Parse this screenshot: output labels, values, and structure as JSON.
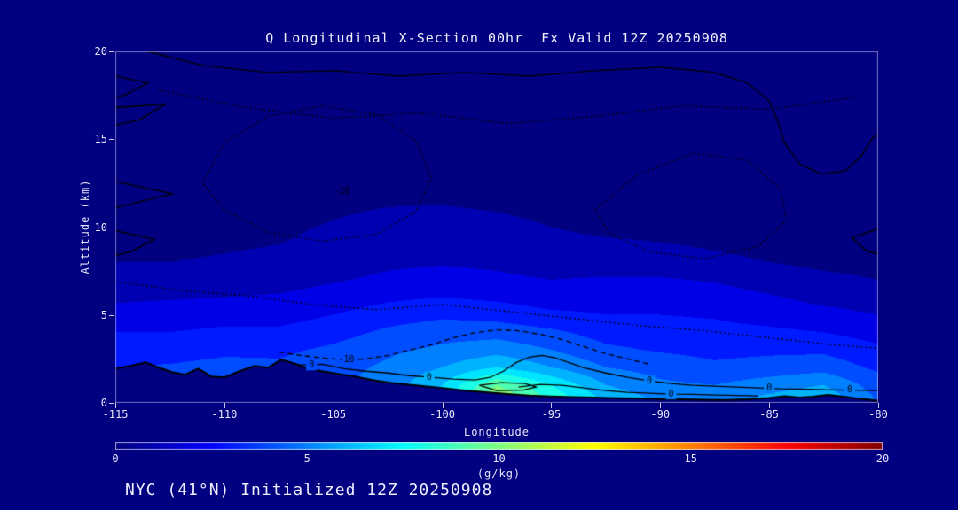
{
  "page": {
    "background": "#000080",
    "text_color": "#e6e6fa"
  },
  "header": {
    "title": "Q Longitudinal X-Section 00hr  Fx Valid 12Z 20250908"
  },
  "footer": {
    "text": "NYC (41°N) Initialized 12Z 20250908"
  },
  "axes": {
    "x": {
      "label": "Longitude",
      "range": [
        -115,
        -80
      ],
      "ticks": [
        -115,
        -110,
        -105,
        -100,
        -95,
        -90,
        -85,
        -80
      ]
    },
    "y": {
      "label": "Altitude (km)",
      "range": [
        0,
        20
      ],
      "ticks": [
        0,
        5,
        10,
        15,
        20
      ]
    }
  },
  "colorbar": {
    "label": "(g/kg)",
    "range": [
      0,
      20
    ],
    "ticks": [
      0,
      5,
      10,
      15,
      20
    ],
    "colormap": "jet"
  },
  "chart_data": {
    "type": "heatmap",
    "title": "Q Longitudinal X-Section 00hr  Fx Valid 12Z 20250908",
    "xlabel": "Longitude",
    "ylabel": "Altitude (km)",
    "units": "g/kg",
    "x_range": [
      -115,
      -80
    ],
    "y_range": [
      0,
      20
    ],
    "value_range": [
      0,
      20
    ],
    "colormap": "jet",
    "contour_interval": 1,
    "x": [
      -115,
      -112.5,
      -110,
      -107.5,
      -105,
      -102.5,
      -100,
      -97.5,
      -95,
      -92.5,
      -90,
      -87.5,
      -85,
      -82.5,
      -80
    ],
    "y": [
      0,
      1,
      2,
      3,
      4,
      5,
      6,
      7,
      8,
      10,
      12,
      16,
      20
    ],
    "values": [
      [
        4.0,
        4.2,
        4.5,
        4.5,
        5.0,
        6.0,
        7.5,
        11.5,
        9.0,
        7.0,
        6.0,
        5.5,
        6.5,
        7.0,
        5.0
      ],
      [
        4.0,
        4.2,
        4.4,
        4.4,
        4.8,
        5.5,
        7.0,
        10.0,
        8.0,
        6.0,
        5.2,
        5.0,
        5.5,
        6.0,
        4.5
      ],
      [
        4.0,
        4.1,
        4.3,
        4.2,
        4.6,
        5.2,
        6.0,
        7.0,
        6.0,
        5.0,
        4.6,
        4.2,
        4.4,
        4.6,
        3.8
      ],
      [
        3.5,
        3.6,
        3.8,
        3.8,
        4.2,
        4.8,
        5.2,
        5.6,
        5.0,
        4.2,
        3.9,
        3.7,
        3.8,
        3.8,
        3.2
      ],
      [
        3.0,
        3.0,
        3.2,
        3.2,
        3.6,
        4.2,
        4.6,
        4.6,
        4.2,
        3.6,
        3.4,
        3.3,
        3.2,
        3.0,
        2.6
      ],
      [
        2.4,
        2.5,
        2.6,
        2.6,
        3.0,
        3.5,
        3.8,
        3.6,
        3.2,
        3.0,
        3.0,
        2.9,
        2.6,
        2.3,
        2.0
      ],
      [
        1.8,
        1.9,
        2.0,
        2.1,
        2.4,
        2.8,
        3.0,
        2.8,
        2.5,
        2.6,
        2.6,
        2.5,
        2.1,
        1.7,
        1.5
      ],
      [
        1.3,
        1.4,
        1.5,
        1.6,
        1.9,
        2.2,
        2.4,
        2.2,
        2.0,
        2.1,
        2.1,
        1.9,
        1.5,
        1.2,
        1.0
      ],
      [
        1.0,
        1.0,
        1.1,
        1.2,
        1.5,
        1.8,
        1.9,
        1.8,
        1.5,
        1.5,
        1.4,
        1.2,
        1.0,
        0.8,
        0.7
      ],
      [
        0.6,
        0.6,
        0.7,
        0.8,
        1.1,
        1.4,
        1.5,
        1.3,
        1.0,
        0.8,
        0.7,
        0.6,
        0.5,
        0.4,
        0.4
      ],
      [
        0.3,
        0.3,
        0.4,
        0.4,
        0.6,
        0.7,
        0.7,
        0.6,
        0.5,
        0.4,
        0.3,
        0.3,
        0.3,
        0.2,
        0.2
      ],
      [
        0.1,
        0.1,
        0.1,
        0.2,
        0.2,
        0.3,
        0.3,
        0.2,
        0.2,
        0.1,
        0.1,
        0.1,
        0.1,
        0.1,
        0.1
      ],
      [
        0.05,
        0.05,
        0.05,
        0.05,
        0.05,
        0.05,
        0.05,
        0.05,
        0.05,
        0.05,
        0.05,
        0.05,
        0.05,
        0.05,
        0.05
      ]
    ],
    "terrain": {
      "lon": [
        -115,
        -114.3,
        -113.6,
        -113,
        -112.4,
        -111.8,
        -111.2,
        -110.6,
        -110,
        -109.3,
        -108.6,
        -108,
        -107.4,
        -106.8,
        -106.2,
        -105.5,
        -104.8,
        -104,
        -103.2,
        -102.4,
        -101.6,
        -100.8,
        -100,
        -99,
        -98,
        -97,
        -96,
        -95,
        -94,
        -93,
        -92,
        -91,
        -90,
        -89,
        -88,
        -87,
        -86,
        -85,
        -84.3,
        -83.6,
        -83,
        -82.3,
        -81.6,
        -81,
        -80.4,
        -80
      ],
      "km": [
        1.95,
        2.1,
        2.3,
        2.0,
        1.75,
        1.6,
        1.95,
        1.5,
        1.45,
        1.8,
        2.1,
        2.0,
        2.45,
        2.25,
        1.95,
        1.8,
        1.65,
        1.5,
        1.3,
        1.15,
        1.05,
        0.95,
        0.85,
        0.7,
        0.6,
        0.5,
        0.42,
        0.37,
        0.33,
        0.3,
        0.27,
        0.25,
        0.22,
        0.2,
        0.18,
        0.17,
        0.2,
        0.28,
        0.38,
        0.3,
        0.35,
        0.45,
        0.35,
        0.25,
        0.18,
        0.12
      ]
    },
    "overlay_contours": [
      {
        "name": "zero-main",
        "style": "solid",
        "pts": [
          [
            -107.5,
            2.5
          ],
          [
            -106.5,
            2.15
          ],
          [
            -105.5,
            2.2
          ],
          [
            -104.5,
            1.95
          ],
          [
            -103.5,
            1.8
          ],
          [
            -102.5,
            1.7
          ],
          [
            -101.5,
            1.55
          ],
          [
            -100.5,
            1.45
          ],
          [
            -99.5,
            1.35
          ],
          [
            -98.5,
            1.3
          ],
          [
            -97.8,
            1.45
          ],
          [
            -97.2,
            1.8
          ],
          [
            -96.6,
            2.3
          ],
          [
            -96,
            2.6
          ],
          [
            -95.4,
            2.7
          ],
          [
            -94.8,
            2.55
          ],
          [
            -94.2,
            2.3
          ],
          [
            -93.5,
            2
          ],
          [
            -92.5,
            1.7
          ],
          [
            -91.5,
            1.45
          ],
          [
            -90.5,
            1.25
          ],
          [
            -89.5,
            1.1
          ],
          [
            -88.5,
            1
          ],
          [
            -87.5,
            0.95
          ],
          [
            -86.5,
            0.9
          ],
          [
            -85.5,
            0.85
          ],
          [
            -84.5,
            0.8
          ],
          [
            -83.5,
            0.78
          ],
          [
            -82.5,
            0.75
          ],
          [
            -81.5,
            0.72
          ],
          [
            -80,
            0.7
          ]
        ],
        "labels": [
          {
            "text": "0",
            "lon": -106,
            "km": 2.15
          },
          {
            "text": "0",
            "lon": -100.6,
            "km": 1.45
          },
          {
            "text": "0",
            "lon": -90.5,
            "km": 1.25
          },
          {
            "text": "0",
            "lon": -85,
            "km": 0.82
          },
          {
            "text": "0",
            "lon": -81.3,
            "km": 0.72
          }
        ]
      },
      {
        "name": "zero-low-east",
        "style": "solid",
        "pts": [
          [
            -96.5,
            0.9
          ],
          [
            -95.5,
            1.05
          ],
          [
            -94.5,
            1
          ],
          [
            -93.5,
            0.85
          ],
          [
            -92.5,
            0.7
          ],
          [
            -91.5,
            0.6
          ],
          [
            -90.5,
            0.55
          ],
          [
            -89.5,
            0.5
          ],
          [
            -88.5,
            0.48
          ],
          [
            -87.5,
            0.45
          ],
          [
            -86.5,
            0.42
          ],
          [
            -85.5,
            0.4
          ]
        ],
        "labels": [
          {
            "text": "0",
            "lon": -89.5,
            "km": 0.5
          }
        ]
      },
      {
        "name": "blob-ring",
        "style": "solid",
        "pts": [
          [
            -98.3,
            1
          ],
          [
            -97.3,
            1.15
          ],
          [
            -96.2,
            1.1
          ],
          [
            -95.7,
            0.9
          ],
          [
            -96.3,
            0.72
          ],
          [
            -97.5,
            0.7
          ],
          [
            -98.3,
            1
          ]
        ],
        "labels": []
      },
      {
        "name": "minus10-low",
        "style": "dashed",
        "pts": [
          [
            -107.5,
            2.9
          ],
          [
            -106.5,
            2.7
          ],
          [
            -105.5,
            2.55
          ],
          [
            -104.5,
            2.45
          ],
          [
            -103.5,
            2.5
          ],
          [
            -102.5,
            2.7
          ],
          [
            -101.5,
            3
          ],
          [
            -100.5,
            3.3
          ],
          [
            -99.5,
            3.7
          ],
          [
            -98.5,
            4
          ],
          [
            -97.5,
            4.15
          ],
          [
            -96.5,
            4.1
          ],
          [
            -95.5,
            3.9
          ],
          [
            -94.5,
            3.6
          ],
          [
            -93.5,
            3.2
          ],
          [
            -92.5,
            2.8
          ],
          [
            -91.5,
            2.5
          ],
          [
            -90.5,
            2.2
          ]
        ],
        "labels": [
          {
            "text": "-10",
            "lon": -104.4,
            "km": 2.45
          }
        ]
      },
      {
        "name": "mid-dotted",
        "style": "dotted",
        "pts": [
          [
            -115,
            6.9
          ],
          [
            -112,
            6.4
          ],
          [
            -109,
            6.1
          ],
          [
            -106,
            5.6
          ],
          [
            -103,
            5.3
          ],
          [
            -100,
            5.6
          ],
          [
            -97,
            5.2
          ],
          [
            -94,
            4.8
          ],
          [
            -91,
            4.4
          ],
          [
            -88,
            4.1
          ],
          [
            -85,
            3.7
          ],
          [
            -82,
            3.3
          ],
          [
            -80,
            3.1
          ]
        ],
        "labels": []
      },
      {
        "name": "upper-loop-west",
        "style": "dotted",
        "pts": [
          [
            -111,
            12.5
          ],
          [
            -110,
            14.8
          ],
          [
            -108,
            16.3
          ],
          [
            -105.5,
            16.9
          ],
          [
            -103,
            16.4
          ],
          [
            -101.2,
            14.9
          ],
          [
            -100.5,
            12.8
          ],
          [
            -101.2,
            10.9
          ],
          [
            -103,
            9.6
          ],
          [
            -105.5,
            9.2
          ],
          [
            -108,
            9.7
          ],
          [
            -110,
            11
          ],
          [
            -111,
            12.5
          ]
        ],
        "labels": [
          {
            "text": "-10",
            "lon": -104.6,
            "km": 12
          }
        ]
      },
      {
        "name": "upper-loop-east",
        "style": "dotted",
        "pts": [
          [
            -93,
            11
          ],
          [
            -91,
            13
          ],
          [
            -88.5,
            14.2
          ],
          [
            -86,
            13.8
          ],
          [
            -84.5,
            12.2
          ],
          [
            -84.2,
            10.4
          ],
          [
            -85.5,
            8.9
          ],
          [
            -88,
            8.2
          ],
          [
            -90.5,
            8.6
          ],
          [
            -92.3,
            9.6
          ],
          [
            -93,
            11
          ]
        ],
        "labels": []
      },
      {
        "name": "upper-arc",
        "style": "dotted",
        "pts": [
          [
            -113,
            17.8
          ],
          [
            -109,
            16.8
          ],
          [
            -105,
            16.2
          ],
          [
            -101,
            16.5
          ],
          [
            -97,
            15.9
          ],
          [
            -93,
            16.3
          ],
          [
            -89,
            16.9
          ],
          [
            -85,
            16.7
          ],
          [
            -81,
            17.4
          ]
        ],
        "labels": []
      },
      {
        "name": "top-right-solid",
        "style": "solid",
        "pts": [
          [
            -113.5,
            20
          ],
          [
            -111,
            19.2
          ],
          [
            -108,
            18.8
          ],
          [
            -105,
            18.9
          ],
          [
            -102,
            18.6
          ],
          [
            -99,
            18.8
          ],
          [
            -96,
            18.6
          ],
          [
            -93,
            18.9
          ],
          [
            -90,
            19.1
          ],
          [
            -87.5,
            18.8
          ],
          [
            -86,
            18.2
          ],
          [
            -85,
            17.2
          ],
          [
            -84.6,
            16
          ],
          [
            -84.3,
            14.8
          ],
          [
            -83.6,
            13.6
          ],
          [
            -82.6,
            13
          ],
          [
            -81.5,
            13.2
          ],
          [
            -80.8,
            14
          ],
          [
            -80.3,
            15
          ],
          [
            -80,
            15.3
          ]
        ],
        "labels": []
      },
      {
        "name": "left-zigzag-1",
        "style": "solid",
        "pts": [
          [
            -115,
            18.6
          ],
          [
            -113.5,
            18.2
          ],
          [
            -114.6,
            17.5
          ],
          [
            -115,
            17.4
          ]
        ],
        "labels": []
      },
      {
        "name": "left-zigzag-2",
        "style": "solid",
        "pts": [
          [
            -115,
            16.8
          ],
          [
            -112.7,
            17
          ],
          [
            -113.9,
            16.1
          ],
          [
            -115,
            15.8
          ]
        ],
        "labels": []
      },
      {
        "name": "left-wedge",
        "style": "solid",
        "pts": [
          [
            -115,
            12.6
          ],
          [
            -112.4,
            11.9
          ],
          [
            -115,
            11.1
          ]
        ],
        "labels": []
      },
      {
        "name": "left-zigzag-3",
        "style": "solid",
        "pts": [
          [
            -115,
            9.8
          ],
          [
            -113.2,
            9.3
          ],
          [
            -114.3,
            8.6
          ],
          [
            -115,
            8.4
          ]
        ],
        "labels": []
      },
      {
        "name": "right-zigzag",
        "style": "solid",
        "pts": [
          [
            -80,
            9.9
          ],
          [
            -81.2,
            9.4
          ],
          [
            -80.5,
            8.6
          ],
          [
            -80,
            8.5
          ]
        ],
        "labels": []
      }
    ]
  }
}
